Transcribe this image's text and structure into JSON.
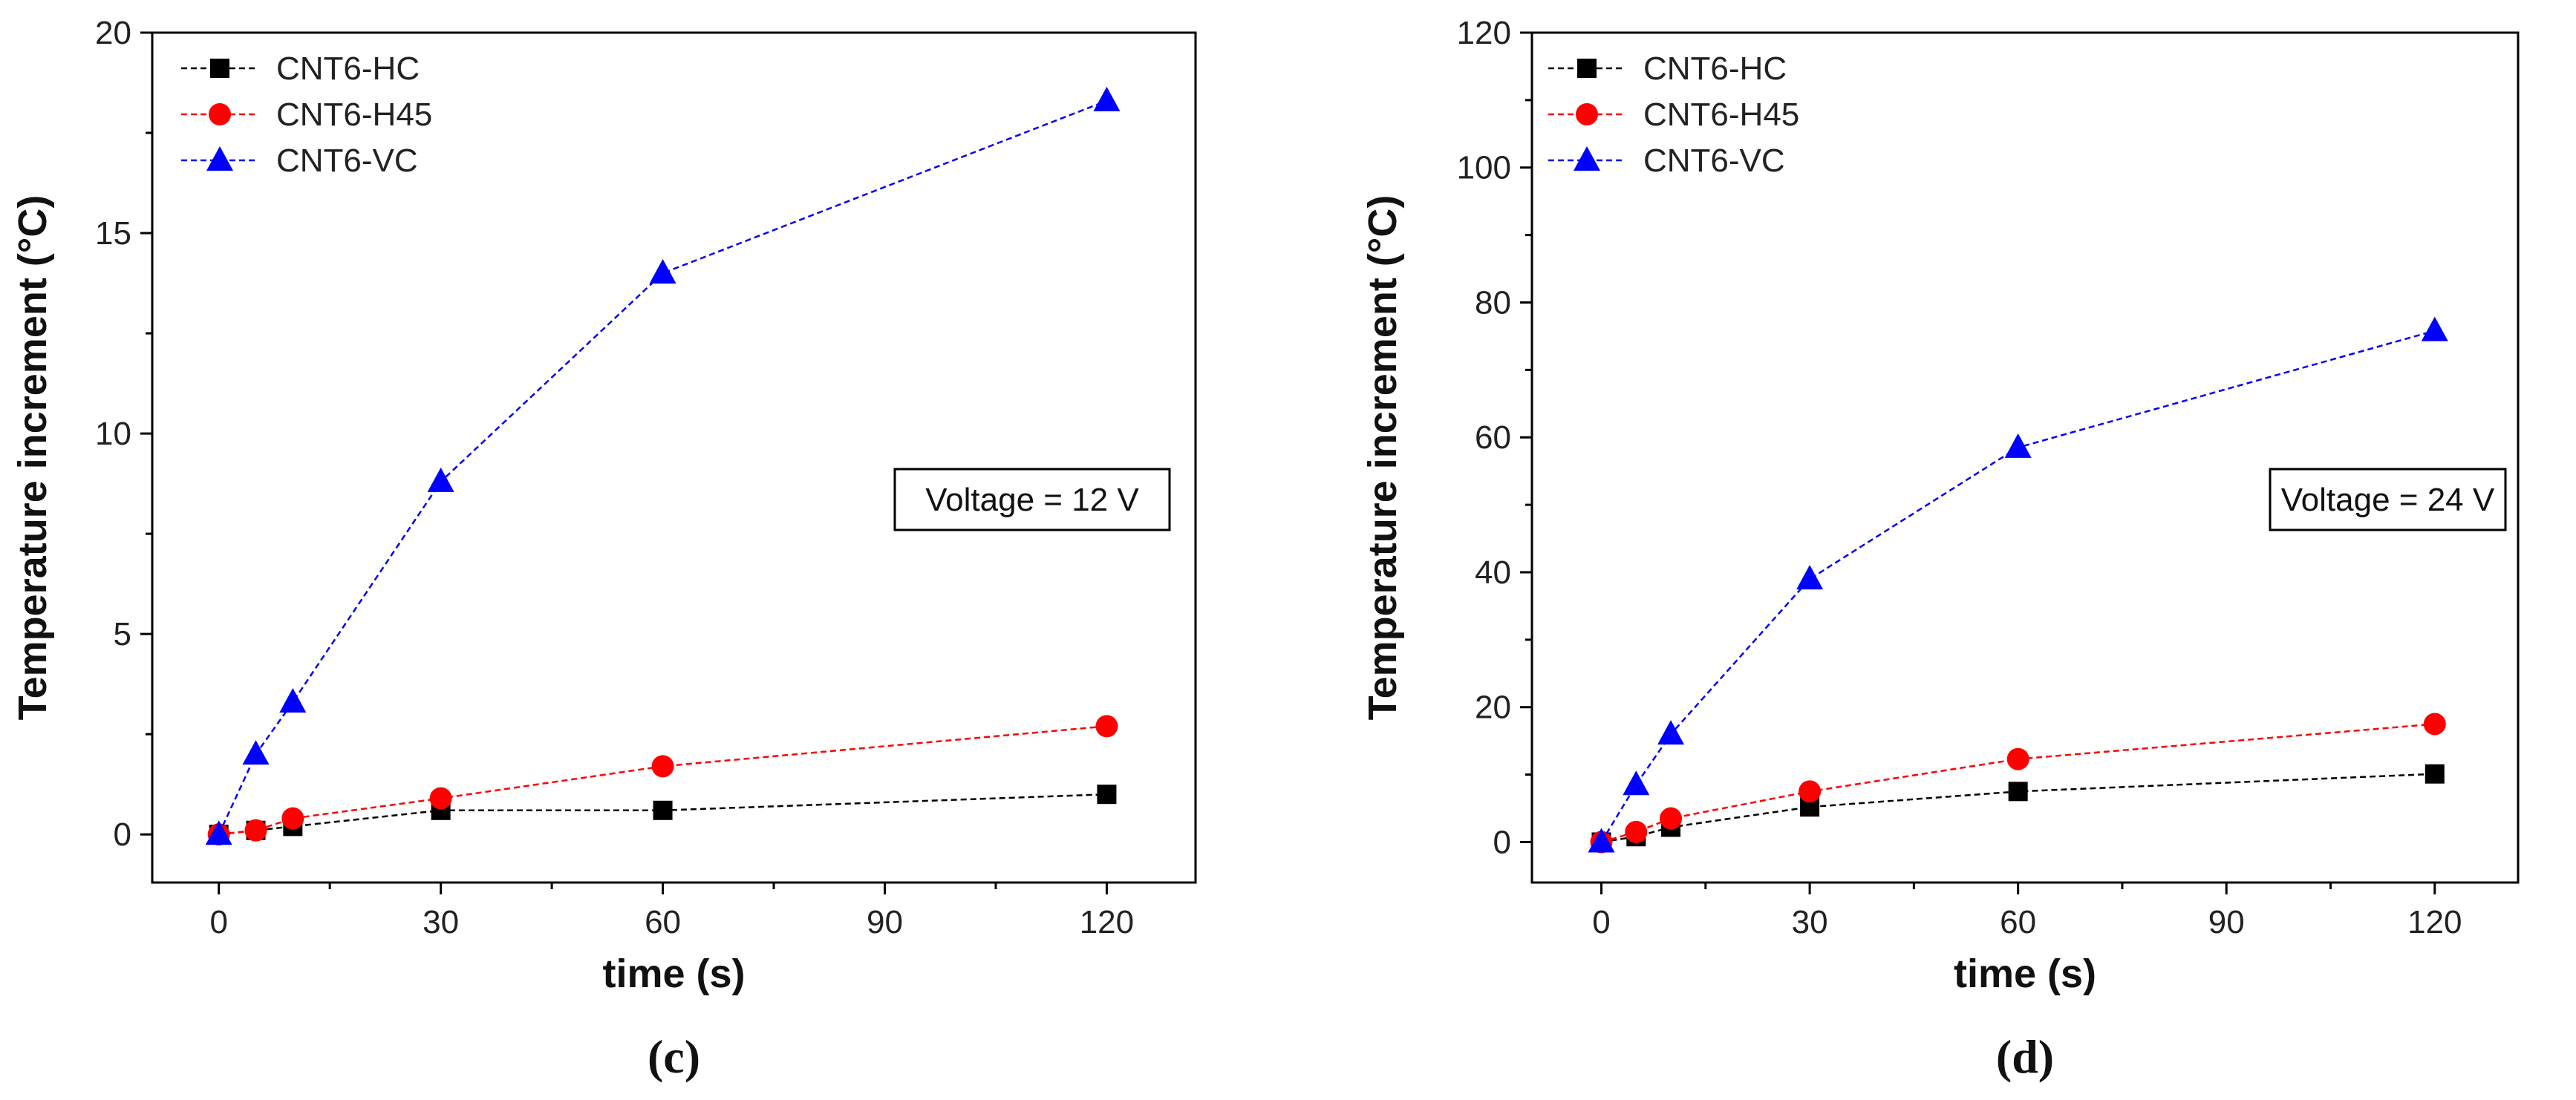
{
  "chart_data": [
    {
      "type": "line",
      "panel_label": "(c)",
      "xlabel": "time (s)",
      "ylabel": "Temperature increment (°C)",
      "xlim": [
        -9,
        132
      ],
      "ylim": [
        -1.2,
        20
      ],
      "xticks": [
        0,
        30,
        60,
        90,
        120
      ],
      "xtick_labels": [
        "0",
        "30",
        "60",
        "90",
        "120"
      ],
      "yticks": [
        0,
        5,
        10,
        15,
        20
      ],
      "ytick_labels": [
        "0",
        "5",
        "10",
        "15",
        "20"
      ],
      "legend_position": "top-left",
      "annotation": "Voltage = 12 V",
      "series": [
        {
          "name": "CNT6-HC",
          "color": "#000000",
          "marker": "square",
          "x": [
            0,
            5,
            10,
            30,
            60,
            120
          ],
          "y": [
            0,
            0.1,
            0.2,
            0.6,
            0.6,
            1.0
          ]
        },
        {
          "name": "CNT6-H45",
          "color": "#ff0000",
          "marker": "circle",
          "x": [
            0,
            5,
            10,
            30,
            60,
            120
          ],
          "y": [
            0,
            0.1,
            0.4,
            0.9,
            1.7,
            2.7
          ]
        },
        {
          "name": "CNT6-VC",
          "color": "#0000ff",
          "marker": "triangle",
          "x": [
            0,
            5,
            10,
            30,
            60,
            120
          ],
          "y": [
            0,
            2.0,
            3.3,
            8.8,
            14.0,
            18.3
          ]
        }
      ]
    },
    {
      "type": "line",
      "panel_label": "(d)",
      "xlabel": "time (s)",
      "ylabel": "Temperature increment (°C)",
      "xlim": [
        -10,
        132
      ],
      "ylim": [
        -6,
        120
      ],
      "xticks": [
        0,
        30,
        60,
        90,
        120
      ],
      "xtick_labels": [
        "0",
        "30",
        "60",
        "90",
        "120"
      ],
      "yticks": [
        0,
        20,
        40,
        60,
        80,
        100,
        120
      ],
      "ytick_labels": [
        "0",
        "20",
        "40",
        "60",
        "80",
        "100",
        "120"
      ],
      "legend_position": "top-left",
      "annotation": "Voltage = 24 V",
      "series": [
        {
          "name": "CNT6-HC",
          "color": "#000000",
          "marker": "square",
          "x": [
            0,
            5,
            10,
            30,
            60,
            120
          ],
          "y": [
            0,
            0.8,
            2.2,
            5.2,
            7.5,
            10.1
          ]
        },
        {
          "name": "CNT6-H45",
          "color": "#ff0000",
          "marker": "circle",
          "x": [
            0,
            5,
            10,
            30,
            60,
            120
          ],
          "y": [
            0,
            1.5,
            3.5,
            7.5,
            12.3,
            17.5
          ]
        },
        {
          "name": "CNT6-VC",
          "color": "#0000ff",
          "marker": "triangle",
          "x": [
            0,
            5,
            10,
            30,
            60,
            120
          ],
          "y": [
            0,
            8.5,
            16.0,
            39.0,
            58.5,
            75.8
          ]
        }
      ]
    }
  ]
}
